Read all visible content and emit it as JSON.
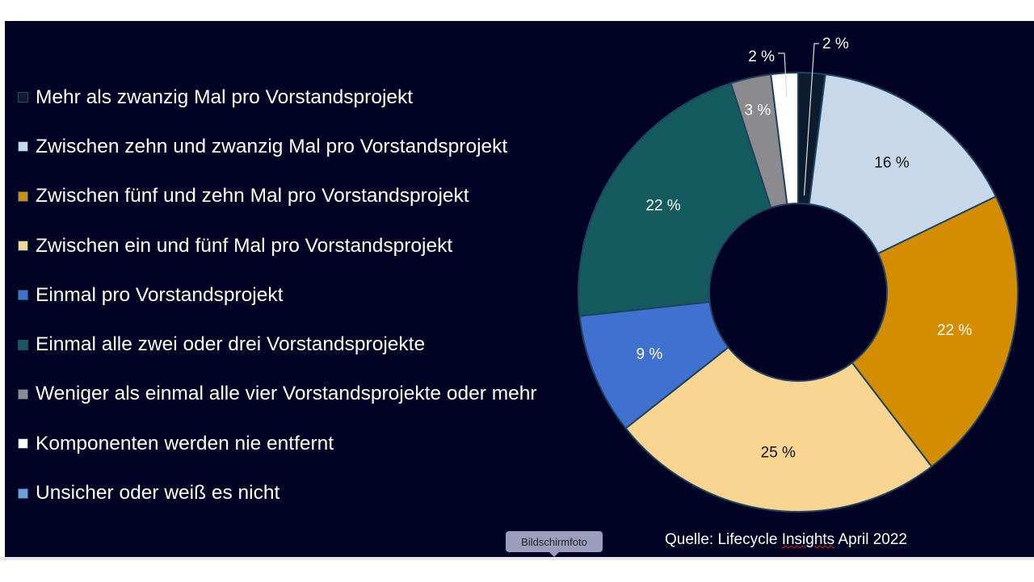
{
  "chart_data": {
    "type": "pie",
    "donut": true,
    "title": "",
    "slices": [
      {
        "label": "Mehr als zwanzig Mal pro Vorstandsprojekt",
        "value": 2,
        "display": "2 %",
        "color": "#0d1b2e"
      },
      {
        "label": "Zwischen zehn und zwanzig Mal pro Vorstandsprojekt",
        "value": 16,
        "display": "16 %",
        "color": "#c7d8ea"
      },
      {
        "label": "Zwischen fünf und zehn Mal pro Vorstandsprojekt",
        "value": 22,
        "display": "22 %",
        "color": "#d48c00"
      },
      {
        "label": "Zwischen ein und fünf Mal pro Vorstandsprojekt",
        "value": 25,
        "display": "25 %",
        "color": "#f9d592"
      },
      {
        "label": "Einmal pro Vorstandsprojekt",
        "value": 9,
        "display": "9 %",
        "color": "#4070d0"
      },
      {
        "label": "Einmal alle zwei oder drei Vorstandsprojekte",
        "value": 22,
        "display": "22 %",
        "color": "#145a5e"
      },
      {
        "label": "Weniger als einmal alle vier Vorstandsprojekte oder mehr",
        "value": 3,
        "display": "3 %",
        "color": "#8b8b8f"
      },
      {
        "label": "Komponenten werden nie entfernt",
        "value": 2,
        "display": "2 %",
        "color": "#ffffff"
      },
      {
        "label": "Unsicher oder weiß es nicht",
        "value": 0,
        "display": "",
        "color": "#6aa0d8"
      }
    ],
    "legend_position": "left"
  },
  "source": {
    "prefix": "Quelle: Lifecycle ",
    "underlined": "Insights",
    "suffix": " April 2022"
  },
  "tooltip": "Bildschirmfoto"
}
